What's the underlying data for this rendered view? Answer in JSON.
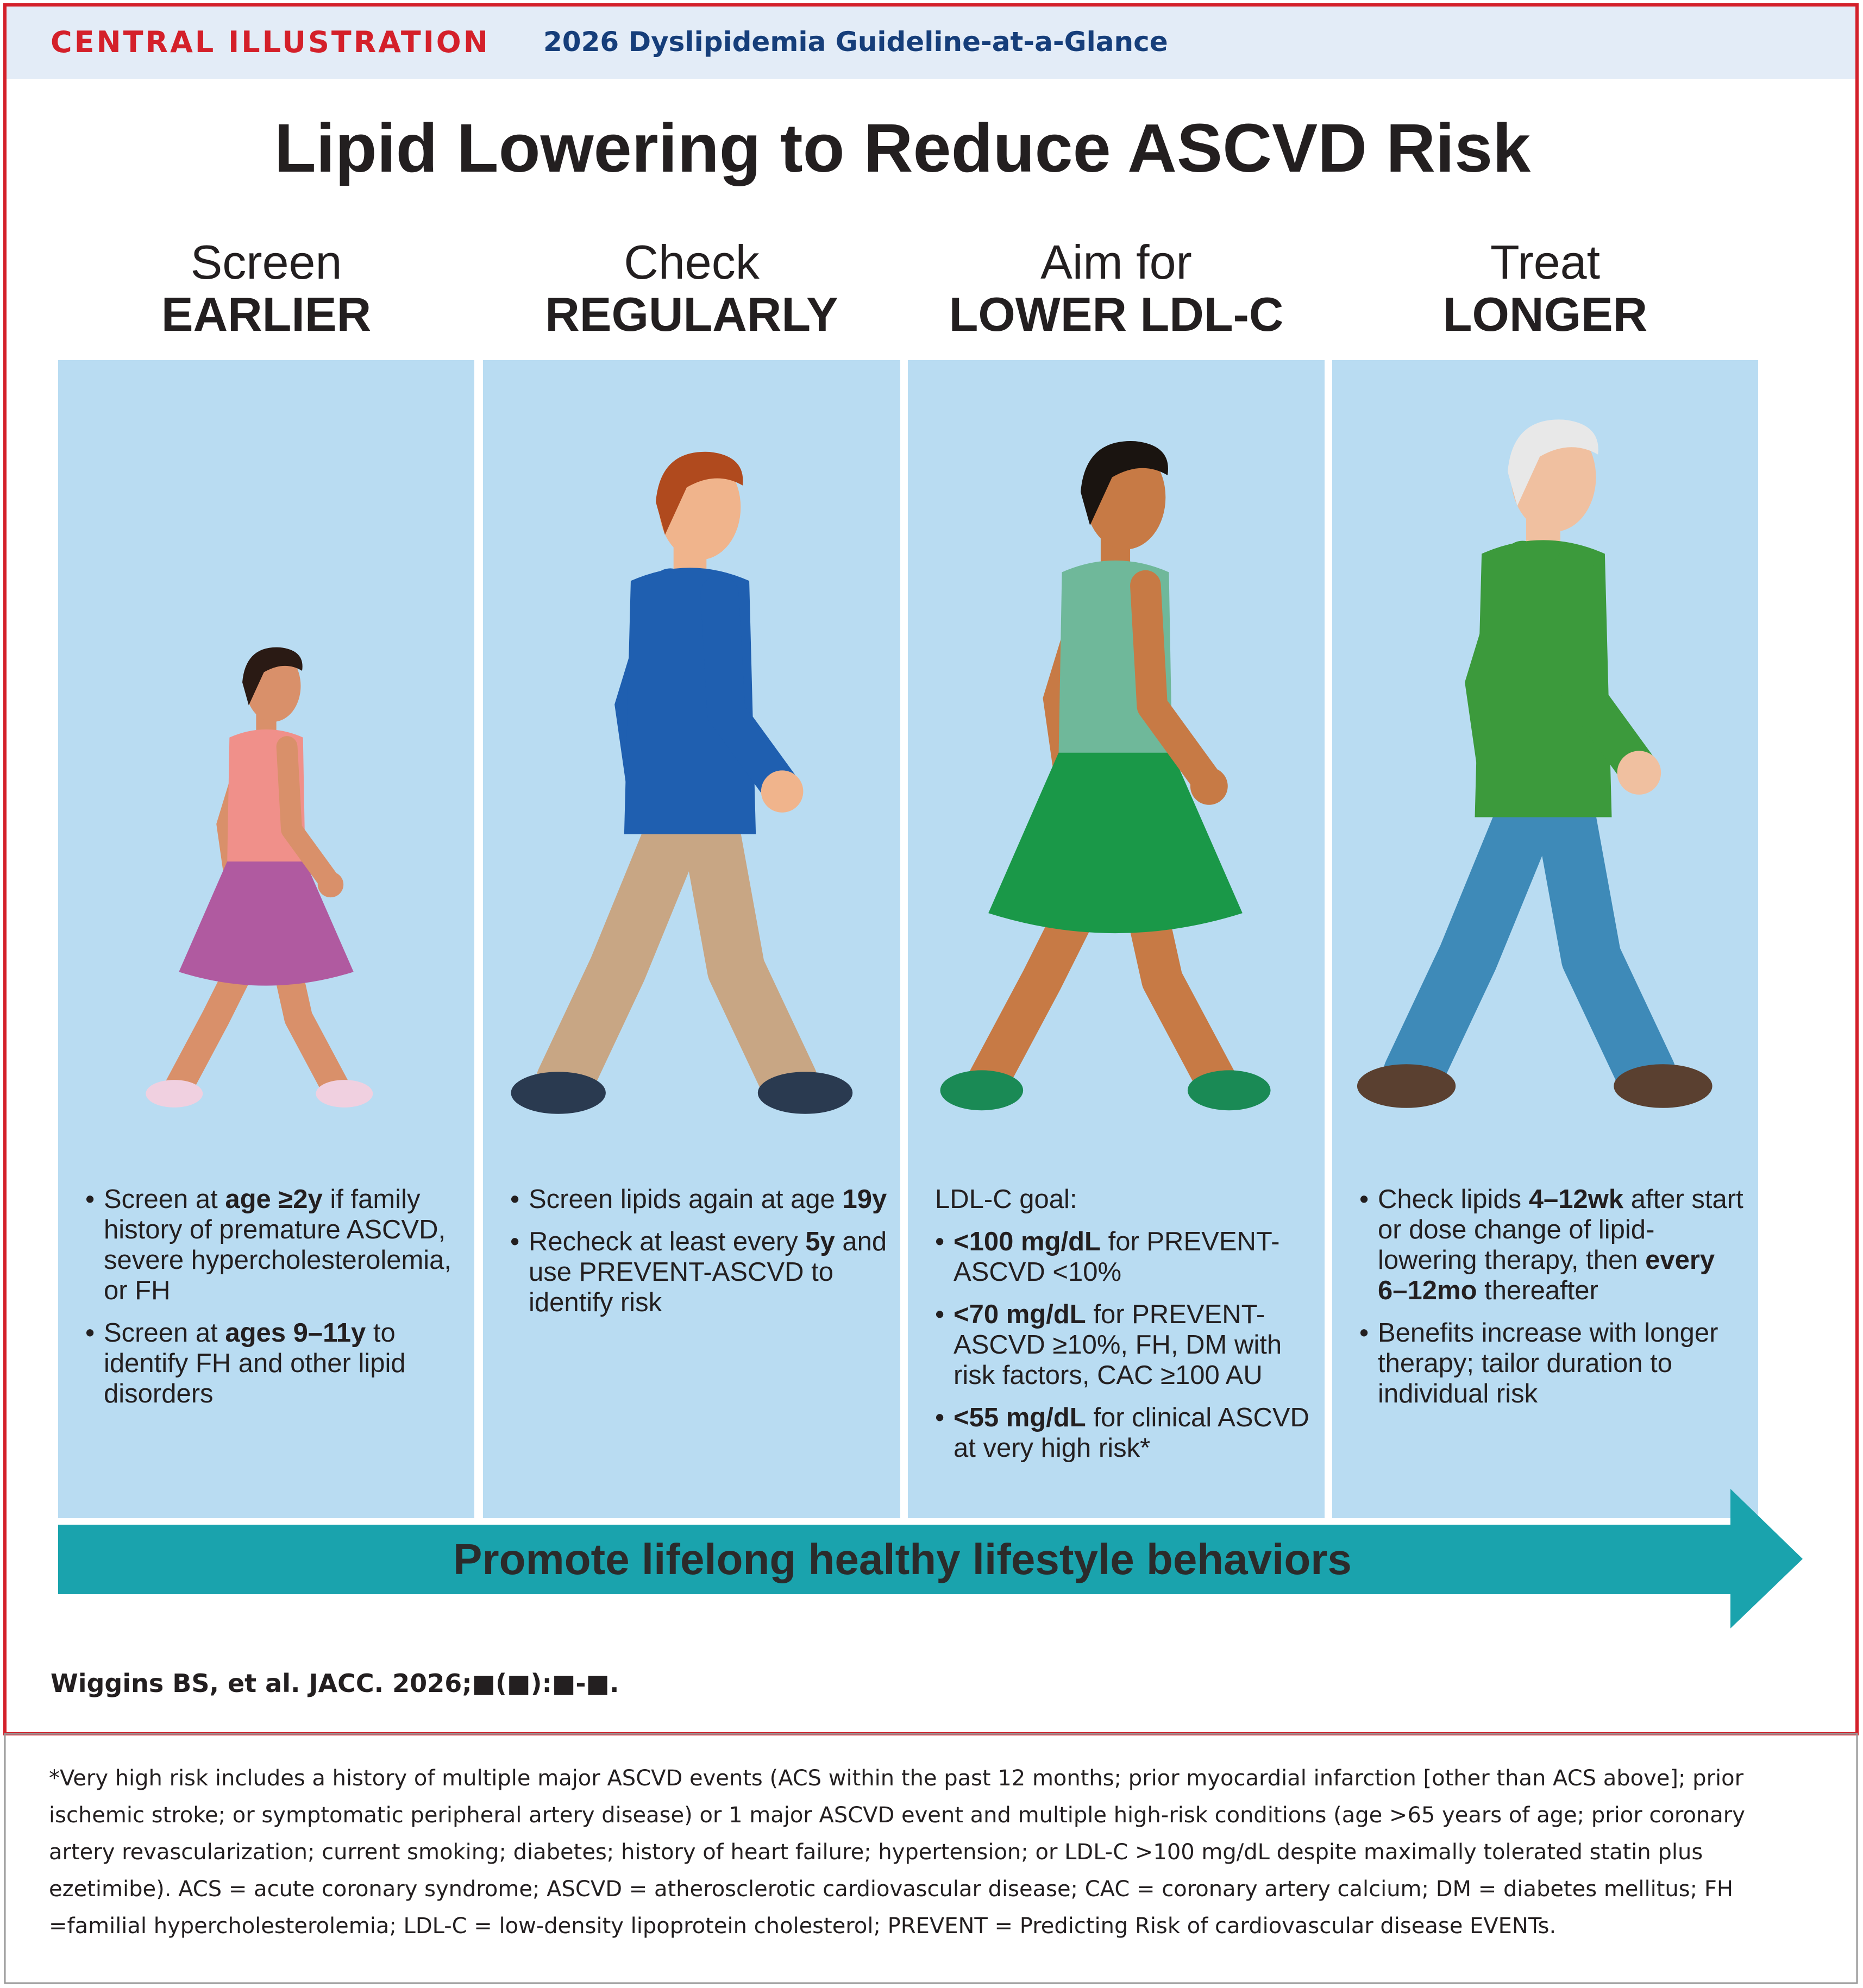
{
  "header": {
    "label": "CENTRAL ILLUSTRATION",
    "subtitle": "2026 Dyslipidemia Guideline-at-a-Glance"
  },
  "title": "Lipid Lowering to Reduce ASCVD Risk",
  "columns": [
    {
      "heading": [
        "Screen",
        "EARLIER"
      ],
      "bullets": [
        [
          {
            "text": "Screen at "
          },
          {
            "text": "age ≥2y",
            "bold": true
          },
          {
            "text": " if family history of premature ASCVD, severe hypercholesterolemia, or FH"
          }
        ],
        [
          {
            "text": "Screen at "
          },
          {
            "text": "ages 9–11y",
            "bold": true
          },
          {
            "text": " to identify FH and other lipid disorders"
          }
        ]
      ]
    },
    {
      "heading": [
        "Check",
        "REGULARLY"
      ],
      "bullets": [
        [
          {
            "text": "Screen lipids again at age "
          },
          {
            "text": "19y",
            "bold": true
          }
        ],
        [
          {
            "text": "Recheck at least every "
          },
          {
            "text": "5y",
            "bold": true
          },
          {
            "text": " and use PREVENT-ASCVD to identify risk"
          }
        ]
      ]
    },
    {
      "heading": [
        "Aim for",
        "LOWER LDL-C"
      ],
      "intro": "LDL-C goal:",
      "bullets": [
        [
          {
            "text": "<100 mg/dL",
            "bold": true
          },
          {
            "text": " for PREVENT-ASCVD <10%"
          }
        ],
        [
          {
            "text": "<70 mg/dL",
            "bold": true
          },
          {
            "text": " for PREVENT-ASCVD ≥10%, FH, DM with risk factors, CAC ≥100 AU"
          }
        ],
        [
          {
            "text": "<55 mg/dL",
            "bold": true
          },
          {
            "text": " for clinical ASCVD at very high risk*"
          }
        ]
      ]
    },
    {
      "heading": [
        "Treat",
        "LONGER"
      ],
      "bullets": [
        [
          {
            "text": "Check lipids "
          },
          {
            "text": "4–12wk",
            "bold": true
          },
          {
            "text": " after start or dose change of lipid-lowering therapy, then "
          },
          {
            "text": "every 6–12mo",
            "bold": true
          },
          {
            "text": " thereafter"
          }
        ],
        [
          {
            "text": "Benefits increase with longer therapy; tailor duration to individual risk"
          }
        ]
      ]
    }
  ],
  "banner": "Promote lifelong healthy lifestyle behaviors",
  "citation": "Wiggins BS, et al. JACC. 2026;■(■):■-■.",
  "footnote": "*Very high risk includes a history of multiple major ASCVD events (ACS within the past 12 months; prior myocardial infarction [other than ACS above]; prior ischemic stroke; or symptomatic peripheral artery disease) or 1 major ASCVD event and multiple high-risk conditions (age >65 years of age; prior coronary artery revascularization; current smoking; diabetes; history of heart failure; hypertension; or LDL-C >100 mg/dL despite maximally tolerated statin plus ezetimibe). ACS = acute coronary syndrome; ASCVD = atherosclerotic cardiovascular disease; CAC = coronary artery calcium; DM = diabetes mellitus; FH =familial hypercholesterolemia; LDL-C = low-density lipoprotein cholesterol; PREVENT = Predicting Risk of cardiovascular disease EVENTs."
}
